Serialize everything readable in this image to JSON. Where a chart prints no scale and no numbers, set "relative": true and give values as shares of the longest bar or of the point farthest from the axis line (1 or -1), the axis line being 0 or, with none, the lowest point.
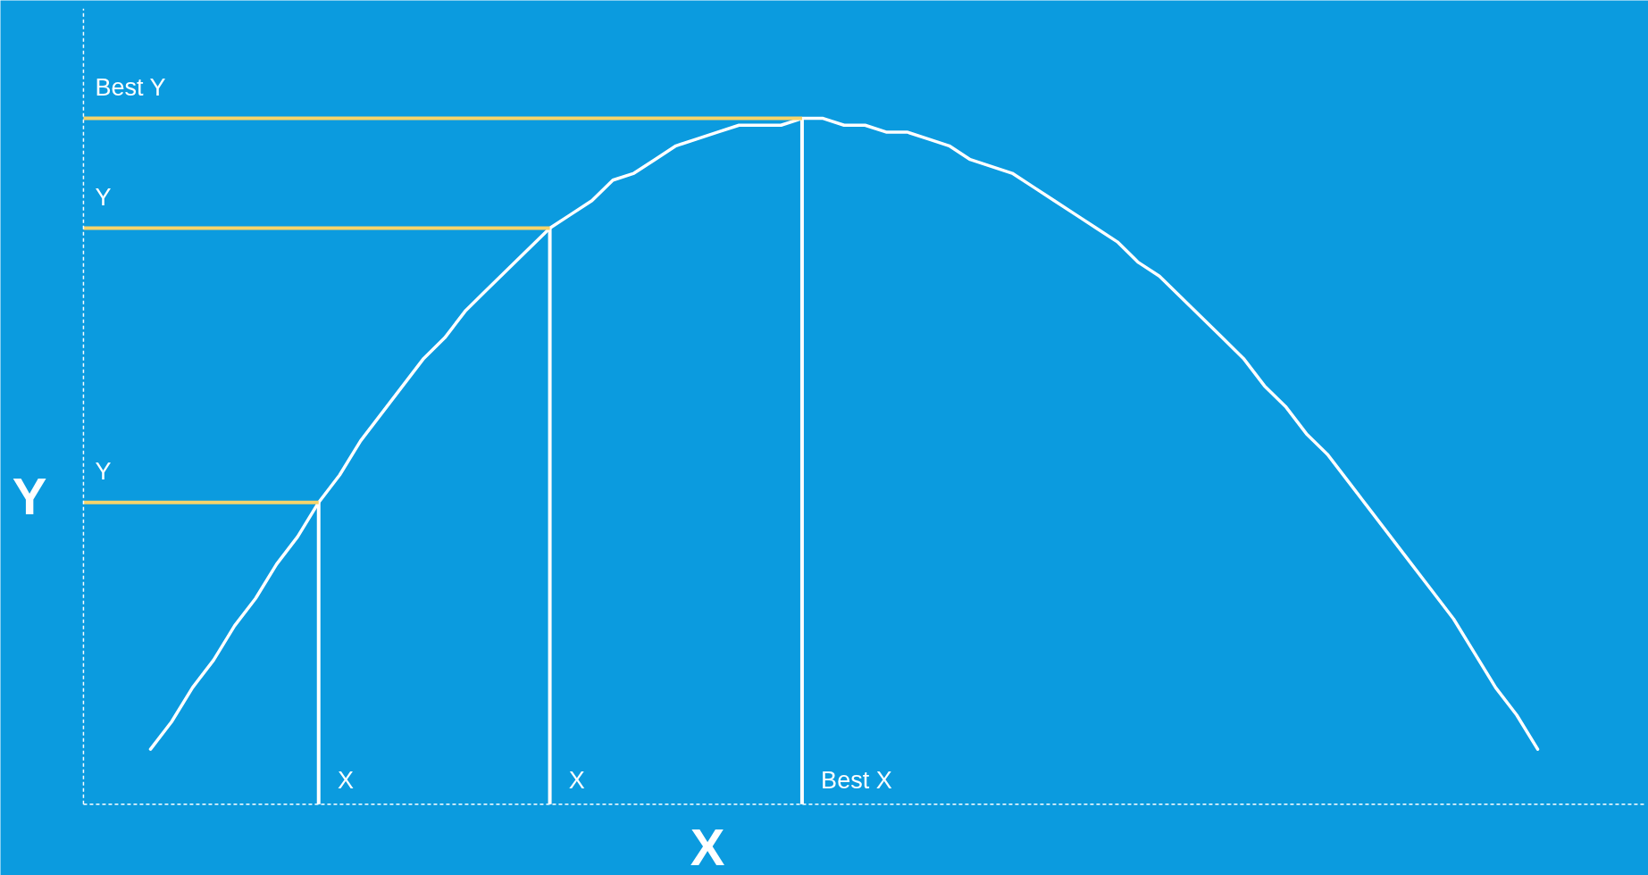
{
  "chart_data": {
    "type": "line",
    "relative": true,
    "xlabel": "X",
    "ylabel": "Y",
    "categories": [
      null,
      null,
      null,
      null,
      null,
      null,
      null,
      null,
      null,
      null,
      null,
      null,
      null,
      null,
      null,
      null,
      null,
      null,
      null,
      null,
      null,
      null,
      null,
      null,
      null,
      null,
      null,
      null,
      null,
      null,
      null,
      null,
      null,
      null,
      null,
      null,
      null,
      null,
      null,
      null,
      null,
      null,
      null,
      null,
      null,
      null,
      null,
      null,
      null,
      null,
      null,
      null,
      null,
      null,
      null,
      null,
      null,
      null,
      null,
      null,
      null,
      null,
      null,
      null,
      null,
      null,
      null
    ],
    "series": [
      {
        "color": "#ffffff",
        "values": [
          0.08,
          0.12,
          0.17,
          0.21,
          0.26,
          0.3,
          0.35,
          0.39,
          0.44,
          0.48,
          0.53,
          0.57,
          0.61,
          0.65,
          0.68,
          0.72,
          0.75,
          0.78,
          0.81,
          0.84,
          0.86,
          0.88,
          0.91,
          0.92,
          0.94,
          0.96,
          0.97,
          0.98,
          0.99,
          0.99,
          0.99,
          1.0,
          1.0,
          0.99,
          0.99,
          0.98,
          0.98,
          0.97,
          0.96,
          0.94,
          0.93,
          0.92,
          0.9,
          0.88,
          0.86,
          0.84,
          0.82,
          0.79,
          0.77,
          0.74,
          0.71,
          0.68,
          0.65,
          0.61,
          0.58,
          0.54,
          0.51,
          0.47,
          0.43,
          0.39,
          0.35,
          0.31,
          0.27,
          0.22,
          0.17,
          0.13,
          0.08
        ]
      }
    ],
    "ref_lines": [
      {
        "axis": "y",
        "value": 0.44,
        "label": "Y",
        "color": "#f7d46a"
      },
      {
        "axis": "y",
        "value": 0.84,
        "label": "Y",
        "color": "#f7d46a"
      },
      {
        "axis": "y",
        "value": 1.0,
        "label": "Best Y",
        "color": "#f7d46a"
      }
    ],
    "annotations": [
      "X",
      "X",
      "Best X"
    ],
    "grid": false,
    "marker": "none",
    "line_style": "solid"
  }
}
